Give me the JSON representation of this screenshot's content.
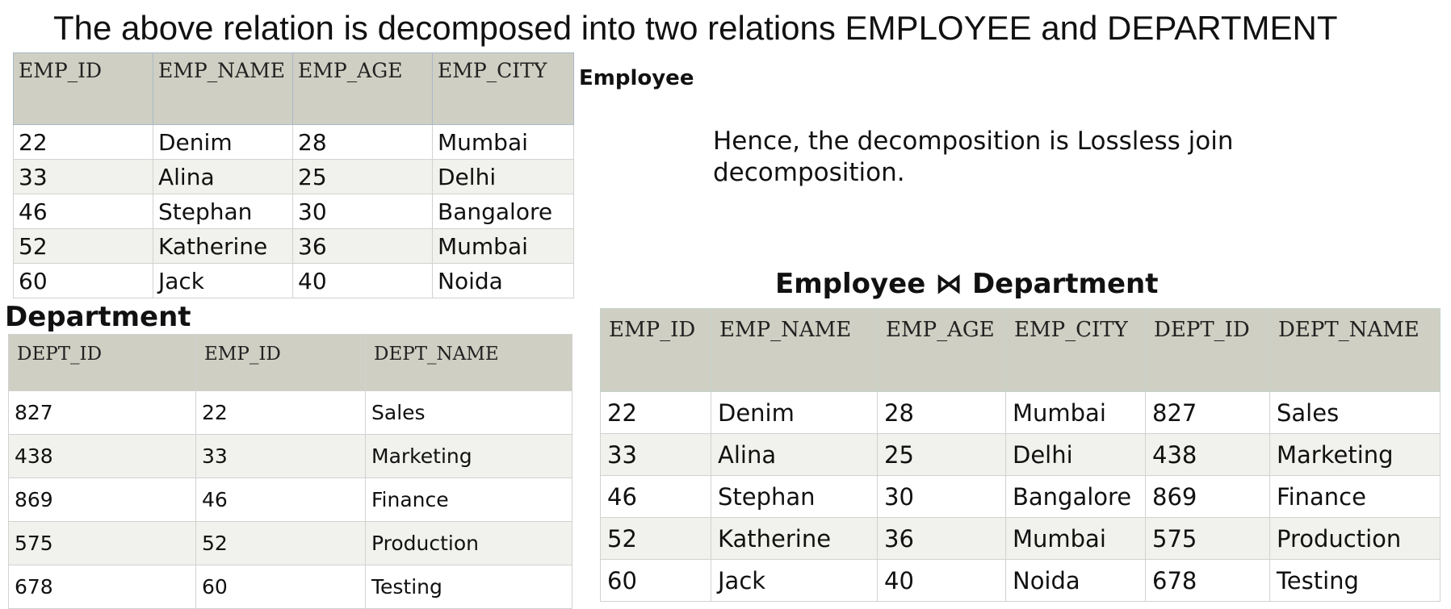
{
  "heading": "The above relation is decomposed into two relations EMPLOYEE and DEPARTMENT",
  "employee": {
    "label": "Employee",
    "headers": [
      "EMP_ID",
      "EMP_NAME",
      "EMP_AGE",
      "EMP_CITY"
    ],
    "rows": [
      [
        "22",
        "Denim",
        "28",
        "Mumbai"
      ],
      [
        "33",
        "Alina",
        "25",
        "Delhi"
      ],
      [
        "46",
        "Stephan",
        "30",
        "Bangalore"
      ],
      [
        "52",
        "Katherine",
        "36",
        "Mumbai"
      ],
      [
        "60",
        "Jack",
        "40",
        "Noida"
      ]
    ]
  },
  "department": {
    "label": "Department",
    "headers": [
      "DEPT_ID",
      "EMP_ID",
      "DEPT_NAME"
    ],
    "rows": [
      [
        "827",
        "22",
        "Sales"
      ],
      [
        "438",
        "33",
        "Marketing"
      ],
      [
        "869",
        "46",
        "Finance"
      ],
      [
        "575",
        "52",
        "Production"
      ],
      [
        "678",
        "60",
        "Testing"
      ]
    ]
  },
  "conclusion": "Hence, the decomposition is Lossless join decomposition.",
  "join": {
    "label": "Employee ⋈ Department",
    "headers": [
      "EMP_ID",
      "EMP_NAME",
      "EMP_AGE",
      "EMP_CITY",
      "DEPT_ID",
      "DEPT_NAME"
    ],
    "rows": [
      [
        "22",
        "Denim",
        "28",
        "Mumbai",
        "827",
        "Sales"
      ],
      [
        "33",
        "Alina",
        "25",
        "Delhi",
        "438",
        "Marketing"
      ],
      [
        "46",
        "Stephan",
        "30",
        "Bangalore",
        "869",
        "Finance"
      ],
      [
        "52",
        "Katherine",
        "36",
        "Mumbai",
        "575",
        "Production"
      ],
      [
        "60",
        "Jack",
        "40",
        "Noida",
        "678",
        "Testing"
      ]
    ]
  }
}
